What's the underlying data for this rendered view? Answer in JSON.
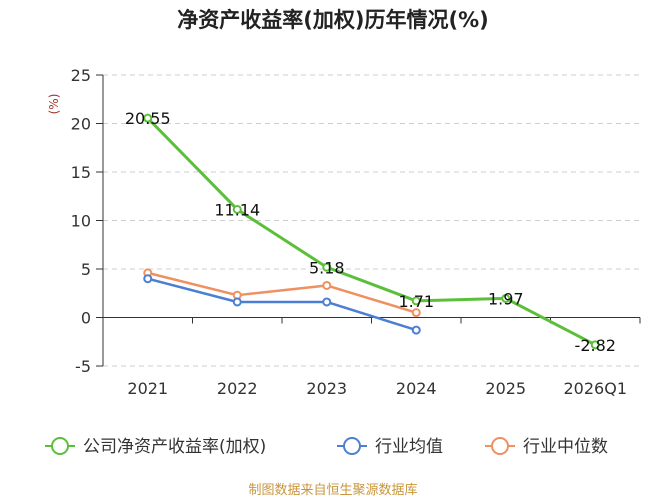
{
  "chart_data": {
    "type": "line",
    "title": "净资产收益率(加权)历年情况(%)",
    "ylabel": "(%)",
    "xlabel": "",
    "categories": [
      "2021",
      "2022",
      "2023",
      "2024",
      "2025",
      "2026Q1"
    ],
    "ylim": [
      -5,
      25
    ],
    "yticks": [
      -5,
      0,
      5,
      10,
      15,
      20,
      25
    ],
    "grid": true,
    "legend_position": "bottom",
    "series": [
      {
        "name": "公司净资产收益率(加权)",
        "color": "#5bbf3a",
        "values": [
          20.55,
          11.14,
          5.18,
          1.71,
          1.97,
          -2.82
        ],
        "data_labels": [
          "20.55",
          "11.14",
          "5.18",
          "1.71",
          "1.97",
          "-2.82"
        ]
      },
      {
        "name": "行业均值",
        "color": "#4a7fd4",
        "values": [
          4.0,
          1.6,
          1.6,
          -1.3,
          null,
          null
        ]
      },
      {
        "name": "行业中位数",
        "color": "#ef9060",
        "values": [
          4.6,
          2.3,
          3.3,
          0.5,
          null,
          null
        ]
      }
    ],
    "source": "制图数据来自恒生聚源数据库"
  }
}
